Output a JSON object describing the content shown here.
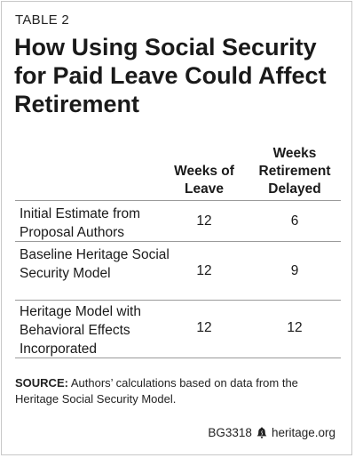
{
  "table_label": "TABLE 2",
  "title": "How Using Social Security for Paid Leave Could Affect Retirement",
  "columns": [
    "Weeks of Leave",
    "Weeks Retirement Delayed"
  ],
  "rows": [
    {
      "label": "Initial Estimate from Proposal Authors",
      "weeks_leave": "12",
      "weeks_delayed": "6"
    },
    {
      "label": "Baseline Heritage Social Security Model",
      "weeks_leave": "12",
      "weeks_delayed": "9"
    },
    {
      "label": "Heritage Model with Behavioral Effects Incorporated",
      "weeks_leave": "12",
      "weeks_delayed": "12"
    }
  ],
  "source": {
    "prefix": "SOURCE:",
    "text": " Authors’ calculations based on data from the Heritage Social Security Model."
  },
  "footer": {
    "code": "BG3318",
    "site": "heritage.org",
    "icon": "liberty-bell-icon"
  },
  "chart_data": {
    "type": "table",
    "title": "How Using Social Security for Paid Leave Could Affect Retirement",
    "columns": [
      "",
      "Weeks of Leave",
      "Weeks Retirement Delayed"
    ],
    "rows": [
      [
        "Initial Estimate from Proposal Authors",
        12,
        6
      ],
      [
        "Baseline Heritage Social Security Model",
        12,
        9
      ],
      [
        "Heritage Model with Behavioral Effects Incorporated",
        12,
        12
      ]
    ]
  }
}
